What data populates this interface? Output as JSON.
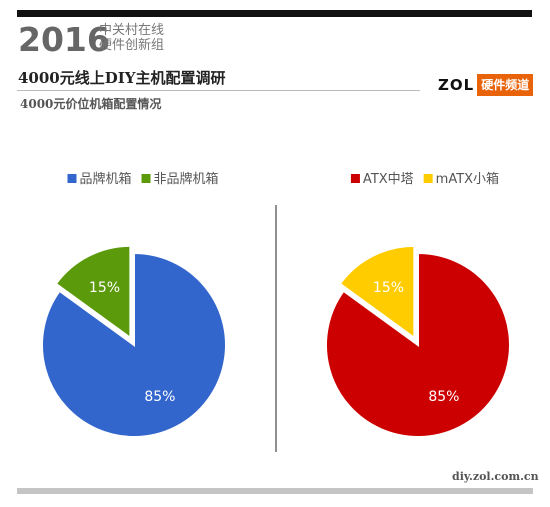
{
  "header": {
    "year": "2016",
    "org_line1": "中关村在线",
    "org_line2": "硬件创新组",
    "title": "4000元线上DIY主机配置调研",
    "subtitle": "4000元价位机箱配置情况",
    "logo_text": "ZOL",
    "logo_box": "硬件频道"
  },
  "footer": {
    "url": "diy.zol.com.cn"
  },
  "chart_data": [
    {
      "type": "pie",
      "title": "",
      "slices": [
        {
          "label": "品牌机箱",
          "value": 85,
          "display": "85%",
          "color": "#3366cc"
        },
        {
          "label": "非品牌机箱",
          "value": 15,
          "display": "15%",
          "color": "#5b9a0a"
        }
      ],
      "exploded": "非品牌机箱",
      "legend": "top",
      "start_angle_deg": 0,
      "direction": "clockwise"
    },
    {
      "type": "pie",
      "title": "",
      "slices": [
        {
          "label": "ATX中塔",
          "value": 85,
          "display": "85%",
          "color": "#cc0000"
        },
        {
          "label": "mATX小箱",
          "value": 15,
          "display": "15%",
          "color": "#ffcc00"
        }
      ],
      "exploded": "mATX小箱",
      "legend": "top",
      "start_angle_deg": 0,
      "direction": "clockwise"
    }
  ]
}
